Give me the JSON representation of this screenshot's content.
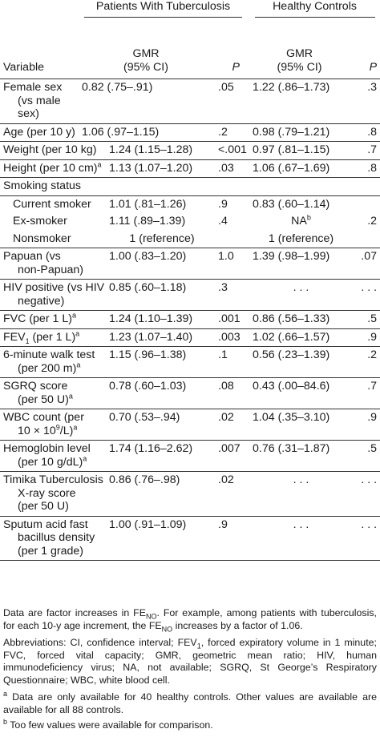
{
  "header": {
    "group_patients": "Patients With Tuberculosis",
    "group_controls": "Healthy Controls",
    "col_variable": "Variable",
    "col_gmr_line1": "GMR",
    "col_gmr_line2": "(95% CI)",
    "col_p": "P"
  },
  "rows": [
    {
      "var": "Female sex",
      "var2": "(vs male sex)",
      "pt_gmr": "0.82 (.75–.91)",
      "pt_p": ".05",
      "hc_gmr": "1.22 (.86–1.73)",
      "hc_p": ".3"
    },
    {
      "var": "Age (per 10 y)",
      "pt_gmr": "1.06 (.97–1.15)",
      "pt_p": ".2",
      "hc_gmr": "0.98 (.79–1.21)",
      "hc_p": ".8"
    },
    {
      "var": "Weight (per 10 kg)",
      "pt_gmr": "1.24 (1.15–1.28)",
      "pt_p": "<.001",
      "hc_gmr": "0.97 (.81–1.15)",
      "hc_p": ".7"
    },
    {
      "var": "Height (per 10 cm)",
      "var_sup": "a",
      "pt_gmr": "1.13 (1.07–1.20)",
      "pt_p": ".03",
      "hc_gmr": "1.06 (.67–1.69)",
      "hc_p": ".8"
    },
    {
      "var": "Smoking status"
    },
    {
      "var": "Current smoker",
      "pt_gmr": "1.01 (.81–1.26)",
      "pt_p": ".9",
      "hc_gmr": "0.83 (.60–1.14)",
      "hc_p": ""
    },
    {
      "var": "Ex-smoker",
      "pt_gmr": "1.11 (.89–1.39)",
      "pt_p": ".4",
      "hc_gmr": "NA",
      "hc_gmr_sup": "b",
      "hc_p": ".2"
    },
    {
      "var": "Nonsmoker",
      "pt_gmr": "1 (reference)",
      "pt_p": "",
      "hc_gmr": "1 (reference)",
      "hc_p": ""
    },
    {
      "var": "Papuan (vs",
      "var2": "non-Papuan)",
      "pt_gmr": "1.00 (.83–1.20)",
      "pt_p": "1.0",
      "hc_gmr": "1.39 (.98–1.99)",
      "hc_p": ".07"
    },
    {
      "var": "HIV positive (vs HIV",
      "var2": "negative)",
      "pt_gmr": "0.85 (.60–1.18)",
      "pt_p": ".3",
      "hc_gmr": ". . .",
      "hc_p": ". . ."
    },
    {
      "var": "FVC (per 1 L)",
      "var_sup": "a",
      "pt_gmr": "1.24 (1.10–1.39)",
      "pt_p": ".001",
      "hc_gmr": "0.86 (.56–1.33)",
      "hc_p": ".5"
    },
    {
      "var_fev_a": "FEV",
      "var_fev_sub": "1",
      "var_fev_b": " (per 1 L)",
      "var_sup": "a",
      "pt_gmr": "1.23 (1.07–1.40)",
      "pt_p": ".003",
      "hc_gmr": "1.02 (.66–1.57)",
      "hc_p": ".9"
    },
    {
      "var": "6-minute walk test",
      "var2": "(per 200 m)",
      "var2_sup": "a",
      "pt_gmr": "1.15 (.96–1.38)",
      "pt_p": ".1",
      "hc_gmr": "0.56 (.23–1.39)",
      "hc_p": ".2"
    },
    {
      "var": "SGRQ score",
      "var2": "(per 50 U)",
      "var2_sup": "a",
      "pt_gmr": "0.78 (.60–1.03)",
      "pt_p": ".08",
      "hc_gmr": "0.43 (.00–84.6)",
      "hc_p": ".7"
    },
    {
      "var": "WBC count (per",
      "var2_a": "10 × 10",
      "var2_exp": "9",
      "var2_b": "/L)",
      "var2_sup": "a",
      "pt_gmr": "0.70 (.53–.94)",
      "pt_p": ".02",
      "hc_gmr": "1.04 (.35–3.10)",
      "hc_p": ".9"
    },
    {
      "var": "Hemoglobin level",
      "var2": "(per 10 g/dL)",
      "var2_sup": "a",
      "pt_gmr": "1.74 (1.16–2.62)",
      "pt_p": ".007",
      "hc_gmr": "0.76 (.31–1.87)",
      "hc_p": ".5"
    },
    {
      "var": "Timika Tuberculosis",
      "var2": "X-ray score",
      "var3": "(per 50 U)",
      "pt_gmr": "0.86 (.76–.98)",
      "pt_p": ".02",
      "hc_gmr": ". . .",
      "hc_p": ". . ."
    },
    {
      "var": "Sputum acid fast",
      "var2": "bacillus density",
      "var3": "(per 1 grade)",
      "pt_gmr": "1.00 (.91–1.09)",
      "pt_p": ".9",
      "hc_gmr": ". . .",
      "hc_p": ". . ."
    }
  ],
  "notes": {
    "note1_a": "Data are factor increases in FE",
    "note1_sub1": "NO",
    "note1_b": ". For example, among patients with tuberculosis, for each 10-y age increment, the FE",
    "note1_sub2": "NO",
    "note1_c": " increases by a factor of 1.06.",
    "abbr_a": "Abbreviations: CI, confidence interval; FEV",
    "abbr_sub": "1",
    "abbr_b": ", forced expiratory volume in 1 minute; FVC, forced vital capacity; GMR, geometric mean ratio; HIV, human immunodeficiency virus; NA, not available; SGRQ, St George’s Respiratory Questionnaire; WBC, white blood cell.",
    "fn_a_mark": "a",
    "fn_a_text": " Data are only available for 40 healthy controls. Other values are available are available for all 88 controls.",
    "fn_b_mark": "b",
    "fn_b_text": " Too few values were available for comparison."
  }
}
